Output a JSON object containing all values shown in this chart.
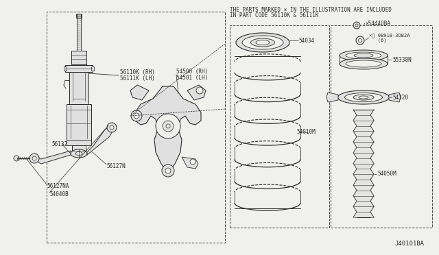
{
  "bg_color": "#f0f0ec",
  "watermark": "J40101BA",
  "notice_line1": "THE PARTS MARKED × IN THE ILLUSTRATION ARE INCLUDED",
  "notice_line2": "IN PART CODE 56110K & 56111K",
  "labels": {
    "56110K_RH": "56110K (RH)",
    "56111K_LH": "56111K (LH)",
    "54500_RH": "54500 (RH)",
    "54501_LH": "54501 (LH)",
    "56132": "56132",
    "56127N": "56127N",
    "56127NA": "56127NA",
    "54040B": "54040B",
    "54034": "54034",
    "54010M": "54010M",
    "54440BA": "×54440BA",
    "N0B91B": "×Ⓝ 0B91B-3DB2A\n   (6)",
    "55338N": "55338N",
    "54320": "54320",
    "54050M": "54050M"
  },
  "line_color": "#2a2a2a",
  "dashed_color": "#444444"
}
